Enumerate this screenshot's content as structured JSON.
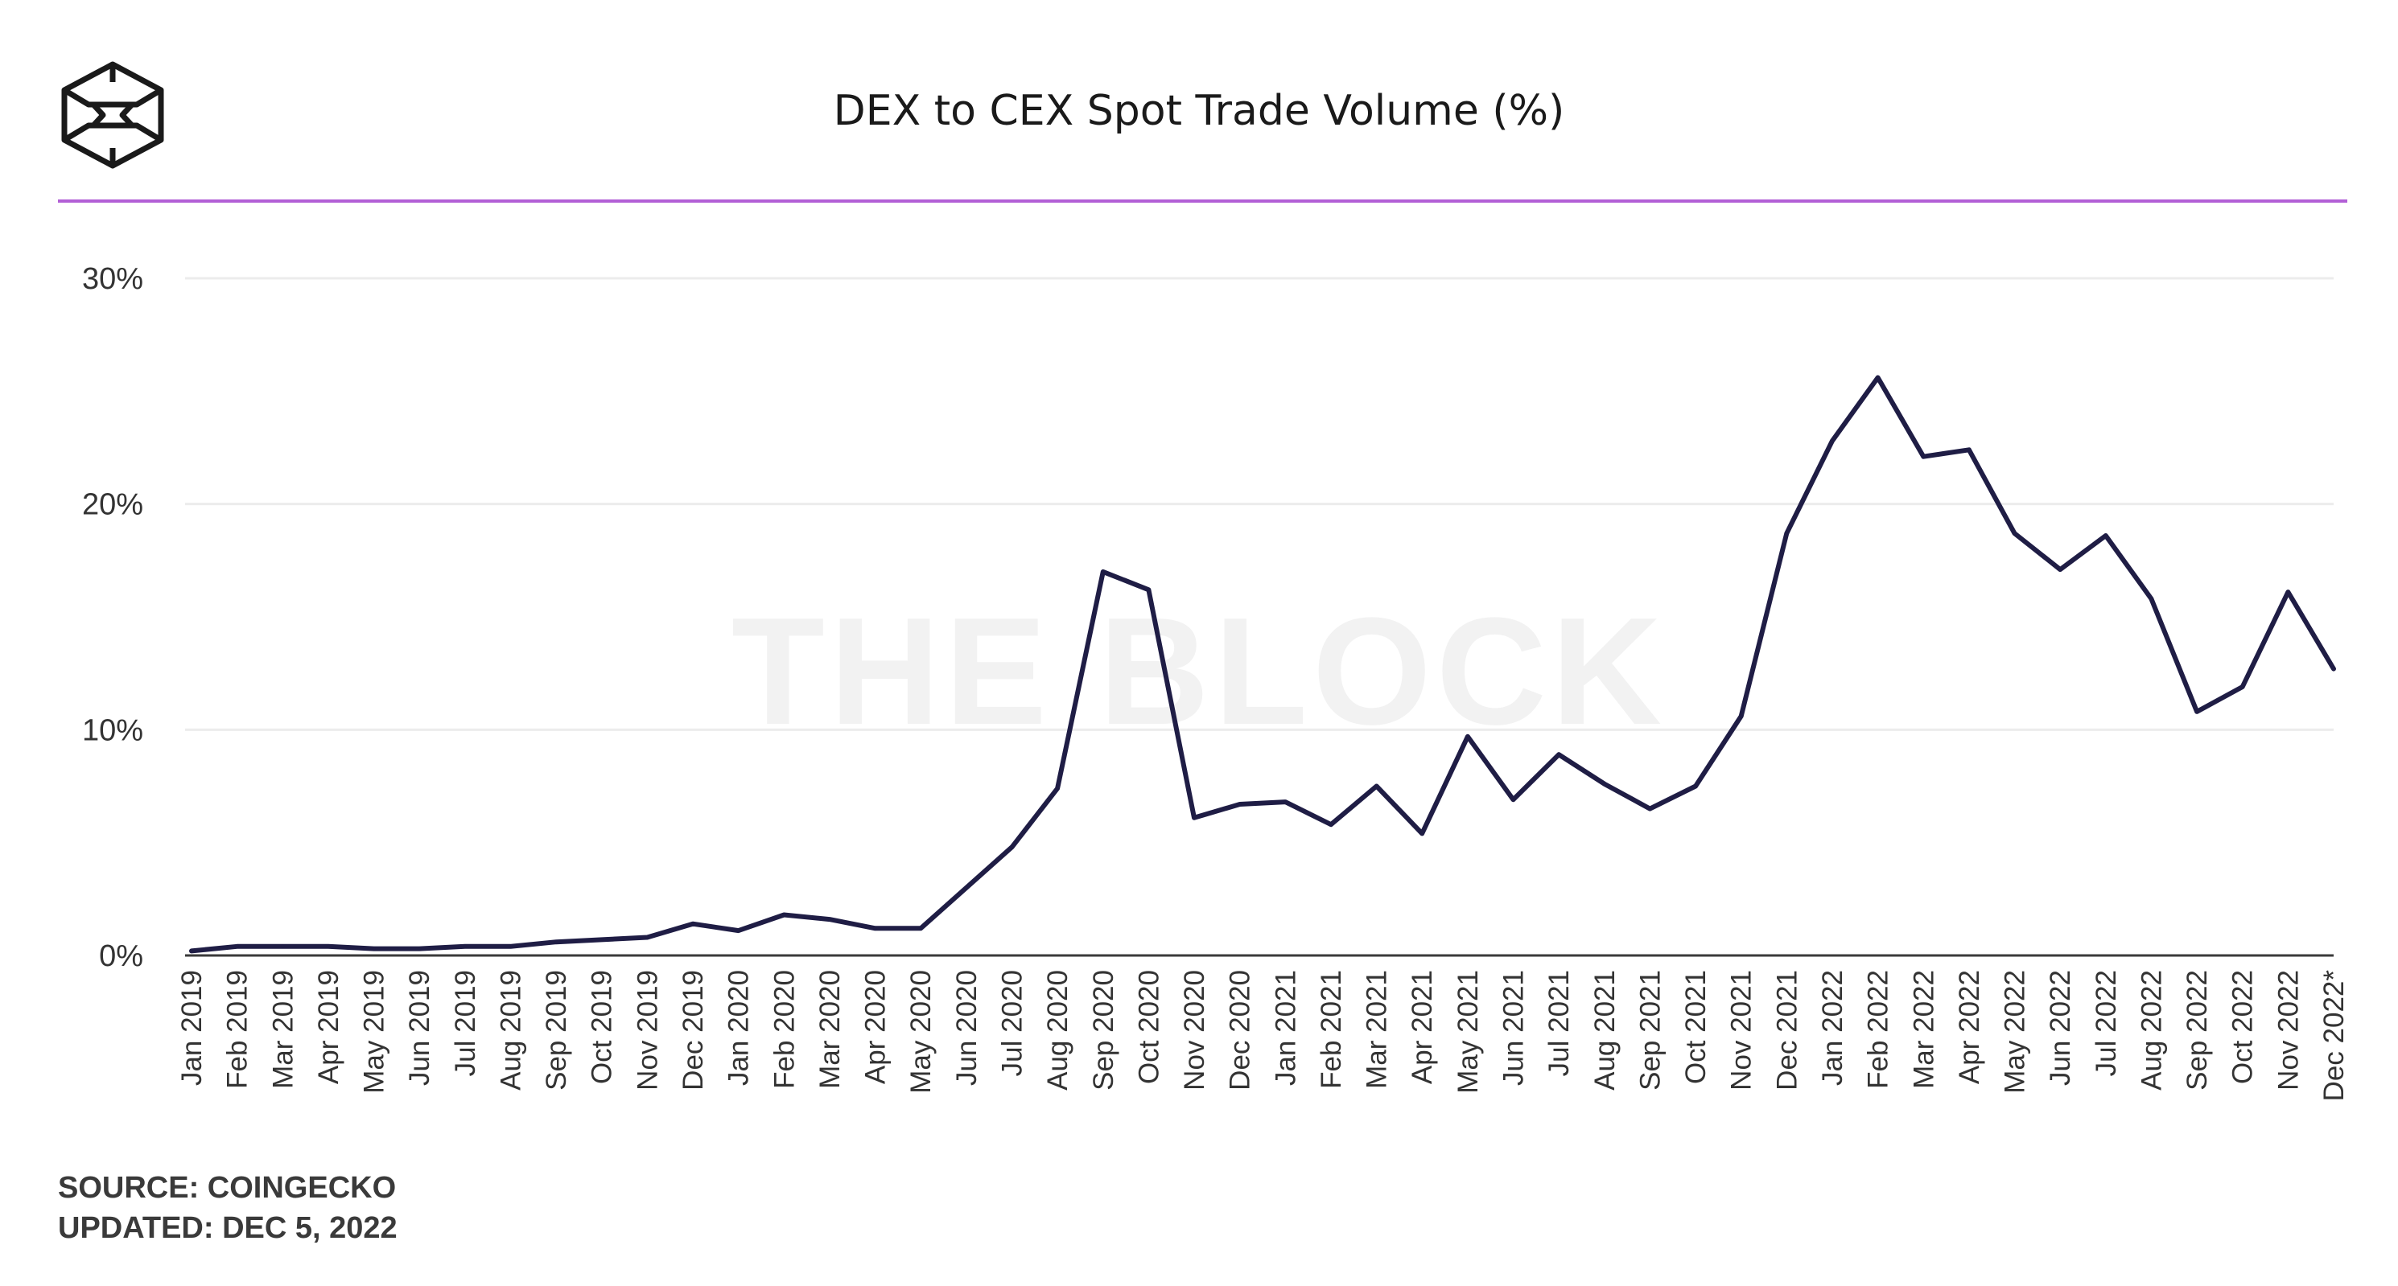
{
  "header": {
    "title": "DEX to CEX Spot Trade Volume (%)",
    "logo_icon": "the-block-cube-logo-icon",
    "accent_color": "#b25fd6"
  },
  "watermark": "THE BLOCK",
  "footer": {
    "source": "SOURCE: COINGECKO",
    "updated": "UPDATED: DEC 5, 2022"
  },
  "colors": {
    "line": "#1f1d45",
    "grid": "#ececec",
    "baseline": "#3a3a3a"
  },
  "chart_data": {
    "type": "line",
    "title": "DEX to CEX Spot Trade Volume (%)",
    "xlabel": "",
    "ylabel": "",
    "ylim": [
      0,
      30
    ],
    "y_ticks": [
      "0%",
      "10%",
      "20%",
      "30%"
    ],
    "y_tick_values": [
      0,
      10,
      20,
      30
    ],
    "grid": true,
    "legend": "none",
    "categories": [
      "Jan 2019",
      "Feb 2019",
      "Mar 2019",
      "Apr 2019",
      "May 2019",
      "Jun 2019",
      "Jul 2019",
      "Aug 2019",
      "Sep 2019",
      "Oct 2019",
      "Nov 2019",
      "Dec 2019",
      "Jan 2020",
      "Feb 2020",
      "Mar 2020",
      "Apr 2020",
      "May 2020",
      "Jun 2020",
      "Jul 2020",
      "Aug 2020",
      "Sep 2020",
      "Oct 2020",
      "Nov 2020",
      "Dec 2020",
      "Jan 2021",
      "Feb 2021",
      "Mar 2021",
      "Apr 2021",
      "May 2021",
      "Jun 2021",
      "Jul 2021",
      "Aug 2021",
      "Sep 2021",
      "Oct 2021",
      "Nov 2021",
      "Dec 2021",
      "Jan 2022",
      "Feb 2022",
      "Mar 2022",
      "Apr 2022",
      "May 2022",
      "Jun 2022",
      "Jul 2022",
      "Aug 2022",
      "Sep 2022",
      "Oct 2022",
      "Nov 2022",
      "Dec 2022*"
    ],
    "series": [
      {
        "values": [
          0.2,
          0.4,
          0.4,
          0.4,
          0.3,
          0.3,
          0.4,
          0.4,
          0.6,
          0.7,
          0.8,
          1.4,
          1.1,
          1.8,
          1.6,
          1.2,
          1.2,
          3.0,
          4.8,
          7.4,
          17.0,
          16.2,
          6.1,
          6.7,
          6.8,
          5.8,
          7.5,
          5.4,
          9.7,
          6.9,
          8.9,
          7.6,
          6.5,
          7.5,
          10.6,
          18.7,
          22.8,
          25.6,
          22.1,
          22.4,
          18.7,
          17.1,
          18.6,
          15.8,
          10.8,
          11.9,
          16.1,
          12.7
        ]
      }
    ]
  }
}
